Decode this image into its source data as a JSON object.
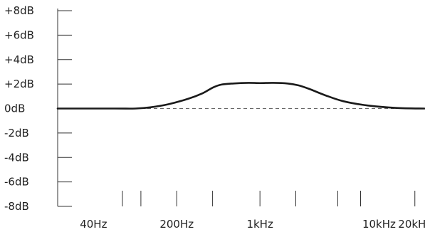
{
  "chart_data": {
    "type": "line",
    "title": "",
    "xlabel": "",
    "ylabel": "",
    "x_scale": "log",
    "xlim": [
      20,
      24000
    ],
    "ylim": [
      -8,
      8.6
    ],
    "y_ticks": [
      {
        "value": 8,
        "label": "+8dB"
      },
      {
        "value": 6,
        "label": "+6dB"
      },
      {
        "value": 4,
        "label": "+4dB"
      },
      {
        "value": 2,
        "label": "+2dB"
      },
      {
        "value": 0,
        "label": "0dB"
      },
      {
        "value": -2,
        "label": "-2dB"
      },
      {
        "value": -4,
        "label": "-4dB"
      },
      {
        "value": -6,
        "label": "-6dB"
      },
      {
        "value": -8,
        "label": "-8dB"
      }
    ],
    "x_ticks": [
      {
        "value": 40,
        "label": "40Hz"
      },
      {
        "value": 200,
        "label": "200Hz"
      },
      {
        "value": 1000,
        "label": "1kHz"
      },
      {
        "value": 10000,
        "label": "10kHz"
      },
      {
        "value": 20000,
        "label": "20kHz"
      }
    ],
    "x_tick_marks": [
      70,
      100,
      200,
      400,
      1000,
      2000,
      4500,
      7000,
      20000
    ],
    "reference_line": {
      "y": 0,
      "style": "dashed",
      "color": "#666666"
    },
    "grid": false,
    "series": [
      {
        "color": "#1a1a1a",
        "points": [
          {
            "x": 20,
            "y": 0
          },
          {
            "x": 60,
            "y": 0
          },
          {
            "x": 90,
            "y": 0
          },
          {
            "x": 120,
            "y": 0.1
          },
          {
            "x": 170,
            "y": 0.35
          },
          {
            "x": 250,
            "y": 0.8
          },
          {
            "x": 330,
            "y": 1.25
          },
          {
            "x": 400,
            "y": 1.7
          },
          {
            "x": 470,
            "y": 1.95
          },
          {
            "x": 600,
            "y": 2.05
          },
          {
            "x": 800,
            "y": 2.1
          },
          {
            "x": 1000,
            "y": 2.08
          },
          {
            "x": 1300,
            "y": 2.1
          },
          {
            "x": 1700,
            "y": 2.05
          },
          {
            "x": 2100,
            "y": 1.9
          },
          {
            "x": 2600,
            "y": 1.6
          },
          {
            "x": 3500,
            "y": 1.1
          },
          {
            "x": 5000,
            "y": 0.6
          },
          {
            "x": 8000,
            "y": 0.25
          },
          {
            "x": 14000,
            "y": 0.05
          },
          {
            "x": 24000,
            "y": 0
          }
        ]
      }
    ]
  }
}
